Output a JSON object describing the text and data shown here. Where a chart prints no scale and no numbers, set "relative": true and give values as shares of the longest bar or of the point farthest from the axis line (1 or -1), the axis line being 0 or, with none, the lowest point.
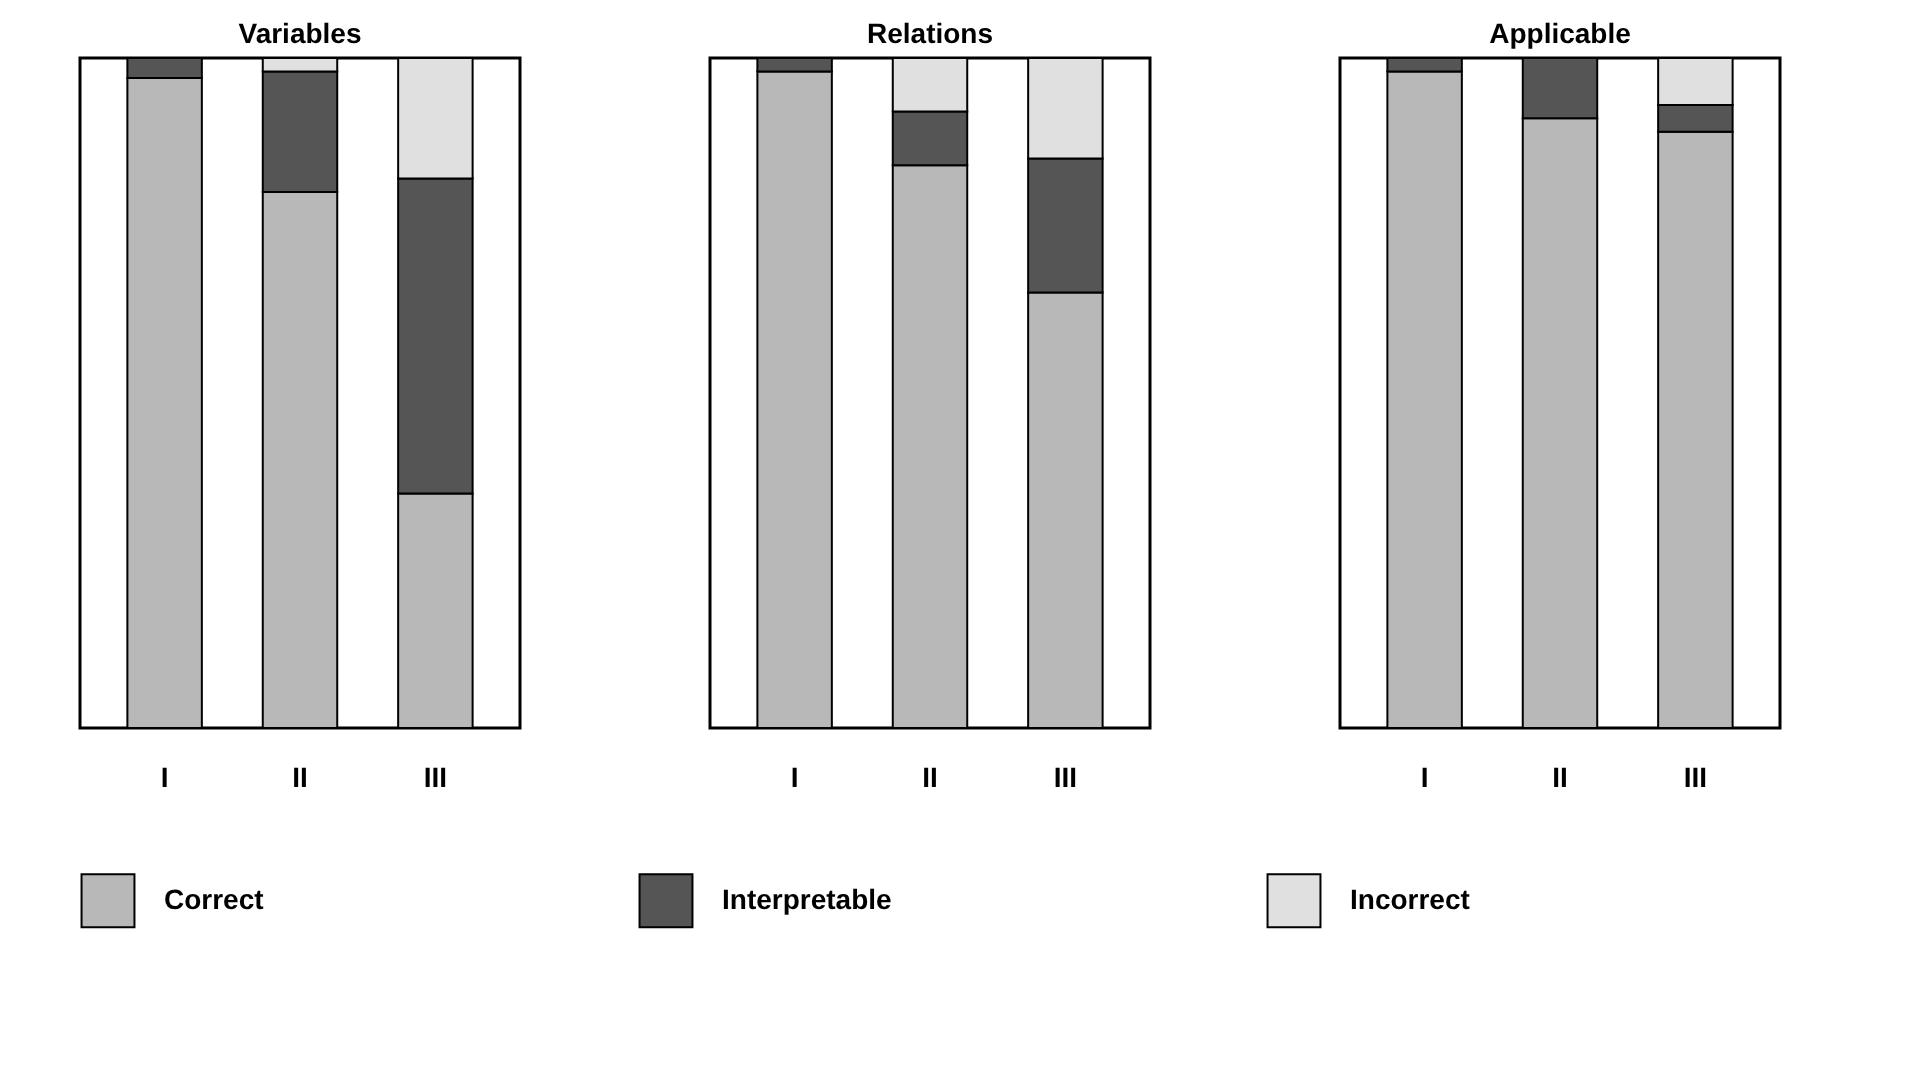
{
  "chart_data": [
    {
      "type": "bar",
      "title": "Variables",
      "categories": [
        "I",
        "II",
        "III"
      ],
      "stacked": true,
      "relative": true,
      "legend": "bottom",
      "series": [
        {
          "name": "Correct",
          "color": "#b8b8b8",
          "values": [
            0.97,
            0.8,
            0.35
          ]
        },
        {
          "name": "Interpretable",
          "color": "#555555",
          "values": [
            0.03,
            0.18,
            0.47
          ]
        },
        {
          "name": "Incorrect",
          "color": "#e0e0e0",
          "values": [
            0,
            0.02,
            0.18
          ]
        }
      ]
    },
    {
      "type": "bar",
      "title": "Relations",
      "categories": [
        "I",
        "II",
        "III"
      ],
      "stacked": true,
      "relative": true,
      "series": [
        {
          "color": "#b8b8b8",
          "values": [
            0.98,
            0.84,
            0.65
          ]
        },
        {
          "color": "#555555",
          "values": [
            0.02,
            0.08,
            0.2
          ]
        },
        {
          "color": "#e0e0e0",
          "values": [
            0,
            0.08,
            0.15
          ]
        }
      ]
    },
    {
      "type": "bar",
      "title": "Applicable",
      "categories": [
        "I",
        "II",
        "III"
      ],
      "stacked": true,
      "relative": true,
      "series": [
        {
          "color": "#b8b8b8",
          "values": [
            0.98,
            0.91,
            0.89
          ]
        },
        {
          "color": "#555555",
          "values": [
            0.02,
            0.09,
            0.04
          ]
        },
        {
          "color": "#e0e0e0",
          "values": [
            0,
            0,
            0.07
          ]
        }
      ]
    }
  ]
}
